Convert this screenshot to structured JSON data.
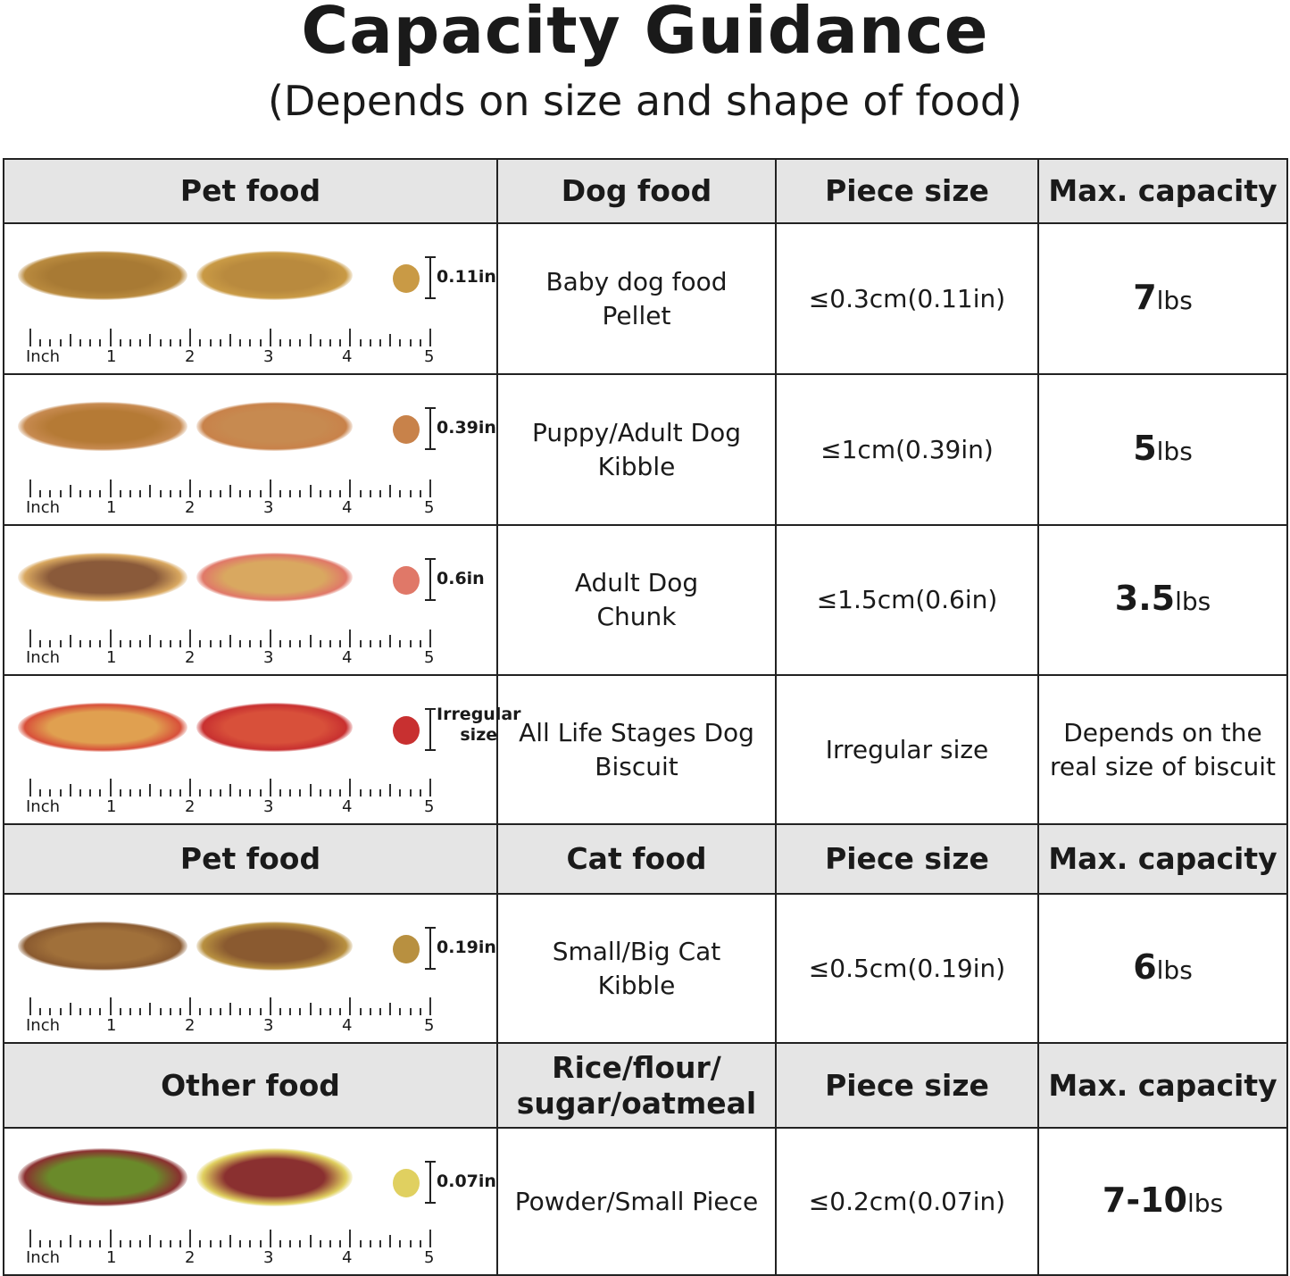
{
  "title": "Capacity Guidance",
  "subtitle": "(Depends on size and shape of food)",
  "ruler": {
    "unit": "Inch",
    "ticks": [
      "1",
      "2",
      "3",
      "4",
      "5"
    ]
  },
  "sections": [
    {
      "header": [
        "Pet food",
        "Dog food",
        "Piece size",
        "Max. capacity"
      ],
      "rows": [
        {
          "size_label": "0.11in",
          "food": "Baby dog food\nPellet",
          "piece": "≤0.3cm(0.11in)",
          "cap": "7",
          "unit": "lbs",
          "colors": [
            "#a87a34",
            "#b98a3e",
            "#c99a45"
          ]
        },
        {
          "size_label": "0.39in",
          "food": "Puppy/Adult Dog\nKibble",
          "piece": "≤1cm(0.39in)",
          "cap": "5",
          "unit": "lbs",
          "colors": [
            "#b57a35",
            "#c78a50",
            "#c8824a"
          ]
        },
        {
          "size_label": "0.6in",
          "food": "Adult Dog\nChunk",
          "piece": "≤1.5cm(0.6in)",
          "cap": "3.5",
          "unit": "lbs",
          "colors": [
            "#8a5a3a",
            "#d9a860",
            "#e07868"
          ]
        },
        {
          "size_label": "Irregular\nsize",
          "food": "All Life Stages Dog\nBiscuit",
          "piece": "Irregular size",
          "cap": "Depends on the\nreal size of biscuit",
          "unit": "",
          "colors": [
            "#e0a050",
            "#d8503a",
            "#c83030"
          ]
        }
      ]
    },
    {
      "header": [
        "Pet food",
        "Cat food",
        "Piece size",
        "Max. capacity"
      ],
      "rows": [
        {
          "size_label": "0.19in",
          "food": "Small/Big Cat\nKibble",
          "piece": "≤0.5cm(0.19in)",
          "cap": "6",
          "unit": "lbs",
          "colors": [
            "#a0703a",
            "#8a5a30",
            "#b89040"
          ]
        }
      ]
    },
    {
      "header": [
        "Other food",
        "Rice/flour/\nsugar/oatmeal",
        "Piece size",
        "Max. capacity"
      ],
      "rows": [
        {
          "size_label": "0.07in",
          "food": "Powder/Small Piece",
          "piece": "≤0.2cm(0.07in)",
          "cap": "7-10",
          "unit": "lbs",
          "colors": [
            "#6a8a2a",
            "#8a3030",
            "#e0d060"
          ]
        }
      ]
    }
  ]
}
